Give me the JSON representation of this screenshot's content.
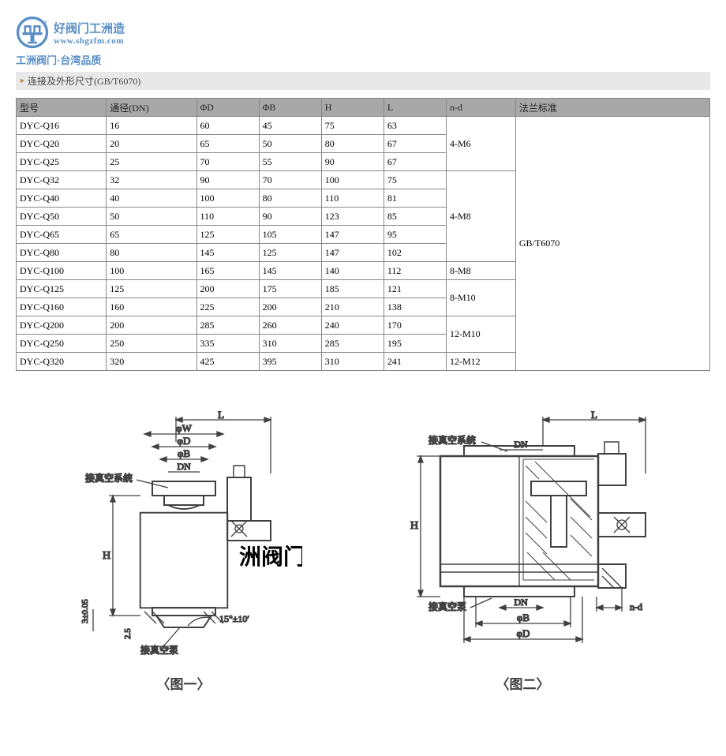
{
  "logo": {
    "line1": "好阀门工洲造",
    "line2": "www.shgzfm.com",
    "subtitle": "工洲阀门·台湾品质",
    "color": "#5a8fc6"
  },
  "section": {
    "title": "连接及外形尺寸(GB/T6070)"
  },
  "table": {
    "headers": [
      "型号",
      "通径(DN)",
      "ΦD",
      "ΦB",
      "H",
      "L",
      "n-d",
      "法兰标准"
    ],
    "nd_groups": [
      {
        "label": "4-M6",
        "rowspan": 3
      },
      {
        "label": "4-M8",
        "rowspan": 5
      },
      {
        "label": "8-M8",
        "rowspan": 1
      },
      {
        "label": "8-M10",
        "rowspan": 2
      },
      {
        "label": "12-M10",
        "rowspan": 2
      },
      {
        "label": "12-M12",
        "rowspan": 1
      }
    ],
    "std_label": "GB/T6070",
    "std_rowspan": 14,
    "rows": [
      {
        "model": "DYC-Q16",
        "dn": "16",
        "d": "60",
        "b": "45",
        "h": "75",
        "l": "63"
      },
      {
        "model": "DYC-Q20",
        "dn": "20",
        "d": "65",
        "b": "50",
        "h": "80",
        "l": "67"
      },
      {
        "model": "DYC-Q25",
        "dn": "25",
        "d": "70",
        "b": "55",
        "h": "90",
        "l": "67"
      },
      {
        "model": "DYC-Q32",
        "dn": "32",
        "d": "90",
        "b": "70",
        "h": "100",
        "l": "75"
      },
      {
        "model": "DYC-Q40",
        "dn": "40",
        "d": "100",
        "b": "80",
        "h": "110",
        "l": "81"
      },
      {
        "model": "DYC-Q50",
        "dn": "50",
        "d": "110",
        "b": "90",
        "h": "123",
        "l": "85"
      },
      {
        "model": "DYC-Q65",
        "dn": "65",
        "d": "125",
        "b": "105",
        "h": "147",
        "l": "95"
      },
      {
        "model": "DYC-Q80",
        "dn": "80",
        "d": "145",
        "b": "125",
        "h": "147",
        "l": "102"
      },
      {
        "model": "DYC-Q100",
        "dn": "100",
        "d": "165",
        "b": "145",
        "h": "140",
        "l": "112"
      },
      {
        "model": "DYC-Q125",
        "dn": "125",
        "d": "200",
        "b": "175",
        "h": "185",
        "l": "121"
      },
      {
        "model": "DYC-Q160",
        "dn": "160",
        "d": "225",
        "b": "200",
        "h": "210",
        "l": "138"
      },
      {
        "model": "DYC-Q200",
        "dn": "200",
        "d": "285",
        "b": "260",
        "h": "240",
        "l": "170"
      },
      {
        "model": "DYC-Q250",
        "dn": "250",
        "d": "335",
        "b": "310",
        "h": "285",
        "l": "195"
      },
      {
        "model": "DYC-Q320",
        "dn": "320",
        "d": "425",
        "b": "395",
        "h": "310",
        "l": "241"
      }
    ],
    "header_bg": "#a8a8a8",
    "border_color": "#888888"
  },
  "diagrams": {
    "caption1": "〈图一〉",
    "caption2": "〈图二〉",
    "labels": {
      "L": "L",
      "phiW": "φW",
      "phiD": "φD",
      "phiB": "φB",
      "DN": "DN",
      "vacuum_system": "接真空系统",
      "vacuum_pump": "接真空泵",
      "H": "H",
      "angle": "15°±10′",
      "tol": "3±0.05",
      "t25": "2.5",
      "nd": "n-d"
    },
    "watermark": "洲阀门",
    "line_color": "#404040",
    "text_size": 13,
    "line_width": 1.2
  }
}
